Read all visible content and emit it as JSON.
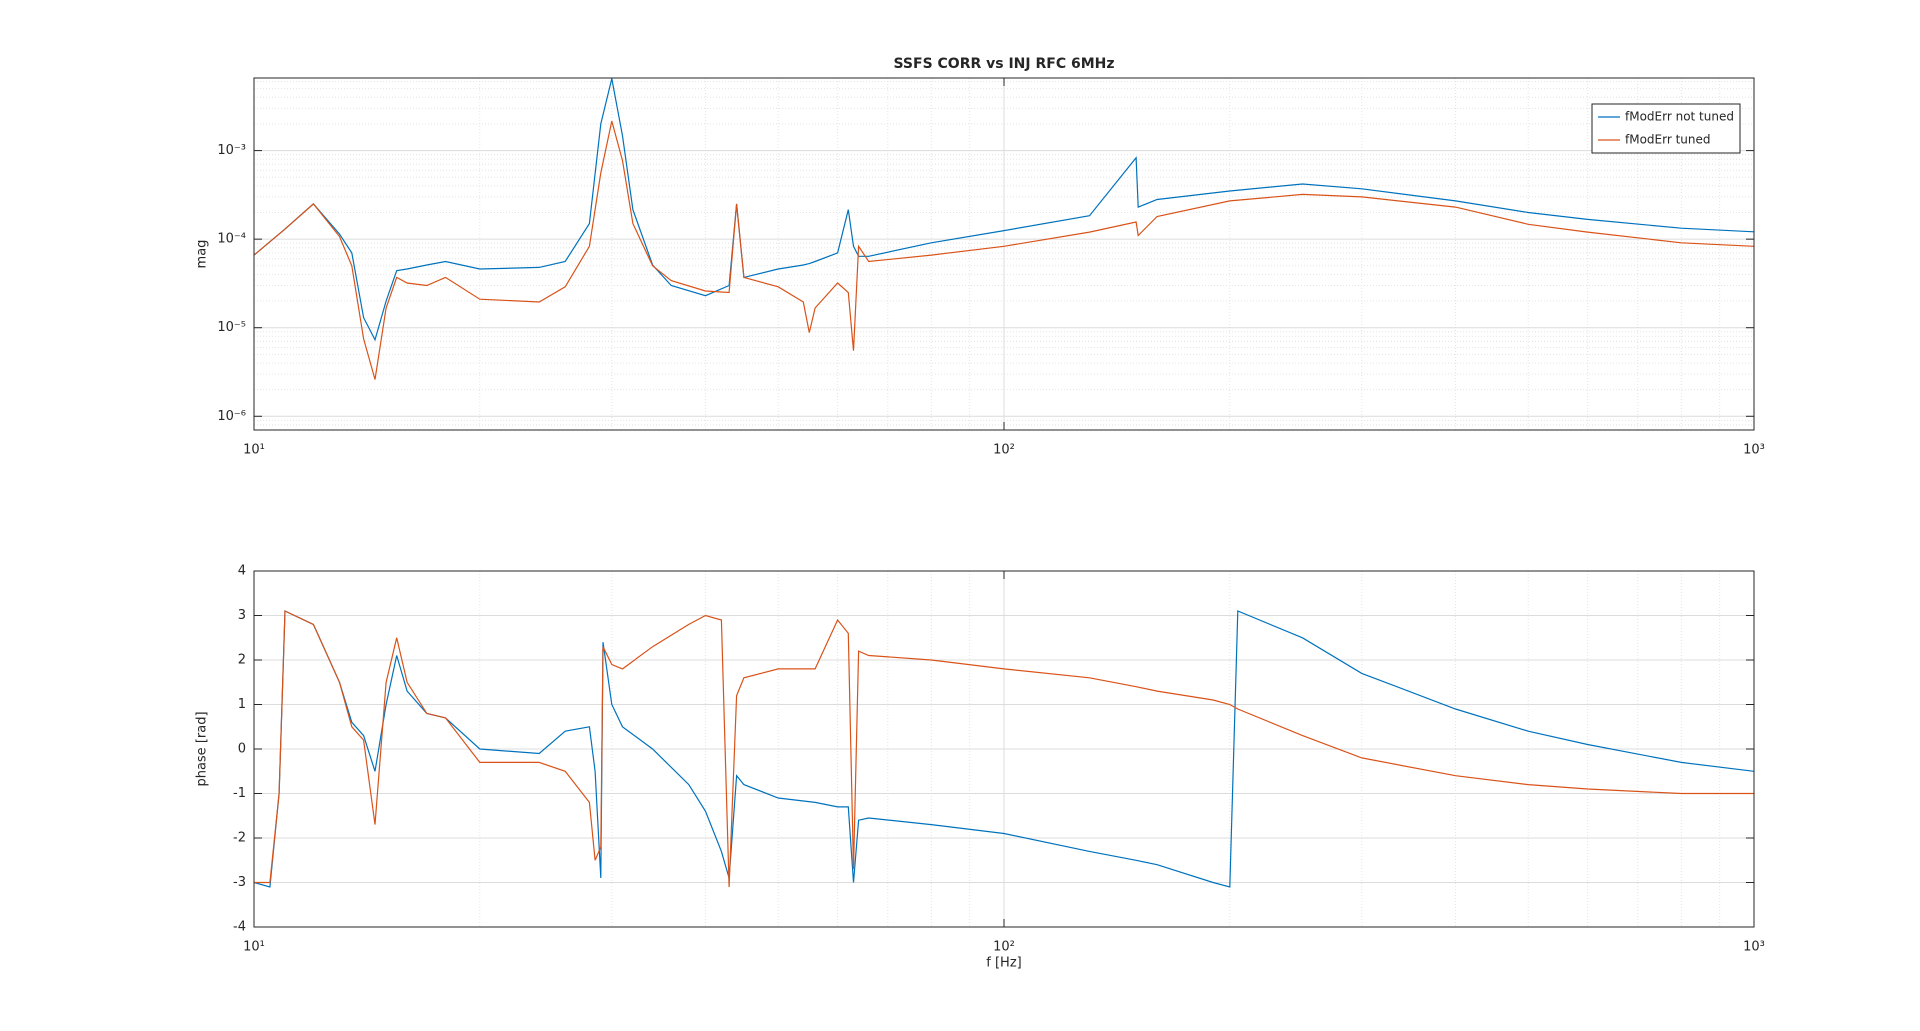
{
  "chart_data": [
    {
      "type": "line",
      "title": "SSFS CORR vs INJ RFC 6MHz",
      "ylabel": "mag",
      "xscale": "log",
      "yscale": "log",
      "xlim": [
        10,
        1000
      ],
      "xticks": [
        {
          "value": 10,
          "label": "10¹"
        },
        {
          "value": 100,
          "label": "10²"
        },
        {
          "value": 1000,
          "label": "10³"
        }
      ],
      "ylim": [
        7e-07,
        0.0066
      ],
      "yticks": [
        {
          "value": 1e-06,
          "label": "10⁻⁶"
        },
        {
          "value": 1e-05,
          "label": "10⁻⁵"
        },
        {
          "value": 0.0001,
          "label": "10⁻⁴"
        },
        {
          "value": 0.001,
          "label": "10⁻³"
        }
      ],
      "grid": true,
      "minor_grid": true,
      "legend": "upper right",
      "x": [
        10,
        11,
        12,
        13,
        13.5,
        14,
        14.5,
        15,
        15.5,
        16,
        17,
        18,
        20,
        24,
        26,
        28,
        29,
        30,
        31,
        32,
        34,
        36,
        40,
        43,
        44,
        45,
        50,
        54,
        55,
        56,
        60,
        62,
        63,
        64,
        66,
        80,
        100,
        130,
        150,
        151,
        160,
        200,
        250,
        300,
        400,
        500,
        600,
        800,
        1000
      ],
      "series": [
        {
          "name": "fModErr not tuned",
          "color": "#0072BD",
          "values": [
            6.6e-05,
            0.00013,
            0.00025,
            0.000114,
            7e-05,
            1.3e-05,
            7.3e-06,
            2e-05,
            4.4e-05,
            4.6e-05,
            5.1e-05,
            5.6e-05,
            4.6e-05,
            4.8e-05,
            5.6e-05,
            0.00015,
            0.002,
            0.0065,
            0.00147,
            0.000215,
            5.1e-05,
            3e-05,
            2.3e-05,
            3e-05,
            0.00025,
            3.7e-05,
            4.6e-05,
            5.1e-05,
            5.3e-05,
            5.6e-05,
            7e-05,
            0.000215,
            8.3e-05,
            6.4e-05,
            6.4e-05,
            9.1e-05,
            0.000125,
            0.000184,
            0.00083,
            0.00023,
            0.00028,
            0.00035,
            0.00042,
            0.00037,
            0.00027,
            0.0002,
            0.000167,
            0.000133,
            0.000121
          ]
        },
        {
          "name": "fModErr tuned",
          "color": "#D95319",
          "values": [
            6.6e-05,
            0.00013,
            0.00025,
            0.000107,
            5e-05,
            7.5e-06,
            2.6e-06,
            1.67e-05,
            3.7e-05,
            3.2e-05,
            3e-05,
            3.7e-05,
            2.1e-05,
            1.95e-05,
            2.9e-05,
            8.3e-05,
            0.00056,
            0.00215,
            0.00077,
            0.00015,
            5e-05,
            3.4e-05,
            2.6e-05,
            2.5e-05,
            0.00025,
            3.7e-05,
            2.9e-05,
            1.95e-05,
            8.8e-06,
            1.67e-05,
            3.2e-05,
            2.5e-05,
            5.5e-06,
            8.3e-05,
            5.6e-05,
            6.6e-05,
            8.3e-05,
            0.00012,
            0.000156,
            0.00011,
            0.00018,
            0.00027,
            0.00032,
            0.0003,
            0.00023,
            0.000147,
            0.00012,
            9.1e-05,
            8.3e-05
          ]
        }
      ]
    },
    {
      "type": "line",
      "ylabel": "phase [rad]",
      "xlabel": "f [Hz]",
      "xscale": "log",
      "xlim": [
        10,
        1000
      ],
      "xticks": [
        {
          "value": 10,
          "label": "10¹"
        },
        {
          "value": 100,
          "label": "10²"
        },
        {
          "value": 1000,
          "label": "10³"
        }
      ],
      "ylim": [
        -4,
        4
      ],
      "yticks": [
        -4,
        -3,
        -2,
        -1,
        0,
        1,
        2,
        3,
        4
      ],
      "grid": true,
      "minor_grid": true,
      "x": [
        10,
        10.5,
        10.8,
        11,
        12,
        13,
        13.5,
        14,
        14.5,
        15,
        15.5,
        16,
        17,
        18,
        20,
        24,
        26,
        28,
        28.5,
        29,
        29.2,
        30,
        31,
        34,
        38,
        40,
        42,
        43,
        44,
        45,
        50,
        56,
        60,
        62,
        63,
        64,
        66,
        80,
        100,
        130,
        150,
        160,
        190,
        200,
        205,
        250,
        300,
        400,
        500,
        600,
        800,
        1000
      ],
      "series": [
        {
          "name": "fModErr not tuned",
          "color": "#0072BD",
          "values": [
            -3.0,
            -3.1,
            -1,
            3.1,
            2.8,
            1.5,
            0.6,
            0.3,
            -0.5,
            1,
            2.1,
            1.3,
            0.8,
            0.7,
            0.0,
            -0.1,
            0.4,
            0.5,
            -0.5,
            -2.9,
            2.4,
            1.0,
            0.5,
            0.0,
            -0.8,
            -1.4,
            -2.3,
            -2.9,
            -0.6,
            -0.8,
            -1.1,
            -1.2,
            -1.3,
            -1.3,
            -3.0,
            -1.6,
            -1.55,
            -1.7,
            -1.9,
            -2.3,
            -2.5,
            -2.6,
            -3.0,
            -3.1,
            3.1,
            2.5,
            1.7,
            0.9,
            0.4,
            0.1,
            -0.3,
            -0.5
          ]
        },
        {
          "name": "fModErr tuned",
          "color": "#D95319",
          "values": [
            -3.0,
            -3.0,
            -1,
            3.1,
            2.8,
            1.5,
            0.5,
            0.2,
            -1.7,
            1.5,
            2.5,
            1.5,
            0.8,
            0.7,
            -0.3,
            -0.3,
            -0.5,
            -1.2,
            -2.5,
            -2.2,
            2.3,
            1.9,
            1.8,
            2.3,
            2.8,
            3.0,
            2.9,
            -3.1,
            1.2,
            1.6,
            1.8,
            1.8,
            2.9,
            2.6,
            -2.7,
            2.2,
            2.1,
            2.0,
            1.8,
            1.6,
            1.4,
            1.3,
            1.1,
            1.0,
            0.9,
            0.3,
            -0.2,
            -0.6,
            -0.8,
            -0.9,
            -1.0,
            -1.0
          ]
        }
      ]
    }
  ]
}
